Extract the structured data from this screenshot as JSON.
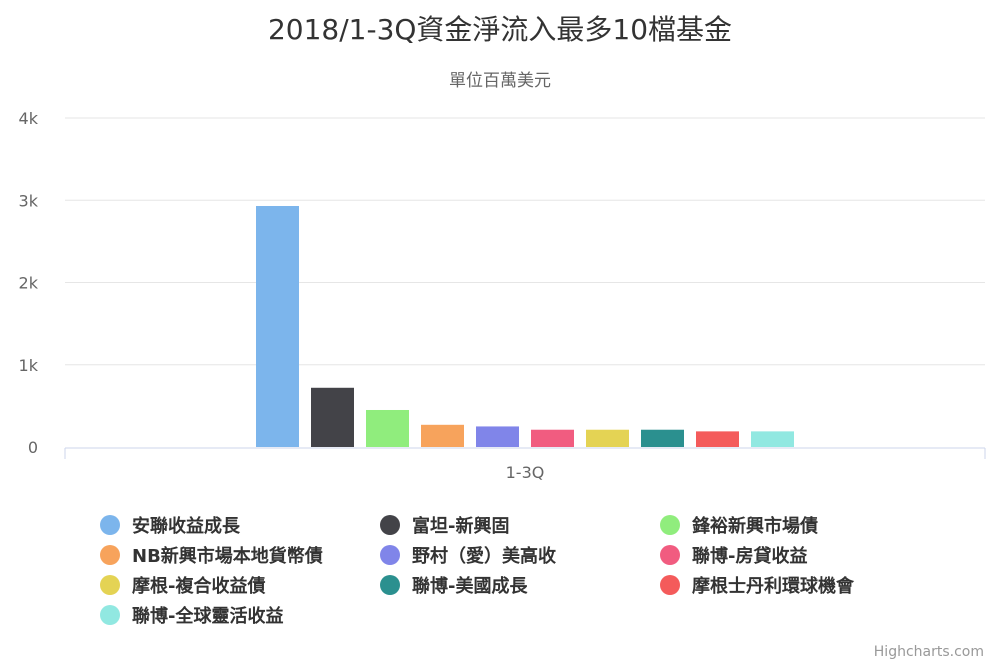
{
  "title": "2018/1-3Q資金淨流入最多10檔基金",
  "subtitle": "單位百萬美元",
  "credits": "Highcharts.com",
  "chart_data": {
    "type": "bar",
    "categories": [
      "1-3Q"
    ],
    "ylim": [
      0,
      4000
    ],
    "y_ticks": [
      "0",
      "1k",
      "2k",
      "3k",
      "4k"
    ],
    "y_tick_values": [
      0,
      1000,
      2000,
      3000,
      4000
    ],
    "grid": true,
    "legend_position": "bottom",
    "series": [
      {
        "name": "安聯收益成長",
        "values": [
          2930
        ],
        "color": "#7cb5ec"
      },
      {
        "name": "富坦-新興固",
        "values": [
          720
        ],
        "color": "#434348"
      },
      {
        "name": "鋒裕新興市場債",
        "values": [
          450
        ],
        "color": "#90ed7d"
      },
      {
        "name": "NB新興市場本地貨幣債",
        "values": [
          270
        ],
        "color": "#f7a35c"
      },
      {
        "name": "野村（愛）美高收",
        "values": [
          250
        ],
        "color": "#8085e9"
      },
      {
        "name": "聯博-房貸收益",
        "values": [
          210
        ],
        "color": "#f15c80"
      },
      {
        "name": "摩根-複合收益債",
        "values": [
          210
        ],
        "color": "#e4d354"
      },
      {
        "name": "聯博-美國成長",
        "values": [
          210
        ],
        "color": "#2b908f"
      },
      {
        "name": "摩根士丹利環球機會",
        "values": [
          190
        ],
        "color": "#f45b5b"
      },
      {
        "name": "聯博-全球靈活收益",
        "values": [
          190
        ],
        "color": "#91e8e1"
      }
    ]
  }
}
